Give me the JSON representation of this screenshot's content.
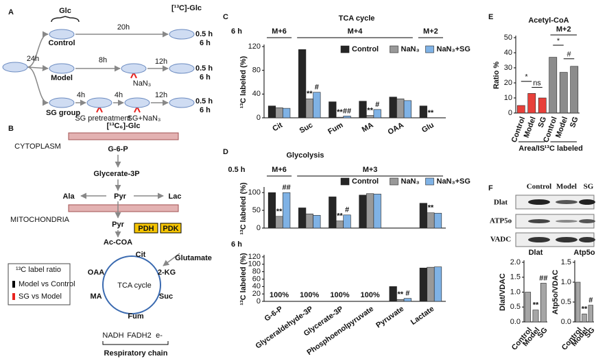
{
  "panels": [
    "A",
    "B",
    "C",
    "D",
    "E",
    "F"
  ],
  "diagram_a": {
    "glc": "Glc",
    "labeled_glc": "[¹³C]-Glc",
    "steps": [
      "24h",
      "20h",
      "8h",
      "12h",
      "4h",
      "4h",
      "12h"
    ],
    "groups": [
      "Control",
      "Model",
      "SG group"
    ],
    "treatments": [
      "NaN₃",
      "SG pretreatment",
      "SG+NaN₃"
    ],
    "times": [
      "0.5 h",
      "6 h"
    ]
  },
  "diagram_b": {
    "source": "[¹³C₆]-Glc",
    "compartments": [
      "CYTOPLASM",
      "MITOCHONDRIA"
    ],
    "nodes": [
      "G-6-P",
      "Glycerate-3P",
      "Ala",
      "Pyr",
      "Lac",
      "Pyr",
      "Ac-COA",
      "Cit",
      "Glutamate",
      "OAA",
      "2-KG",
      "MA",
      "Suc",
      "Fum"
    ],
    "enzymes": [
      "PDH",
      "PDK"
    ],
    "cycle": "TCA cycle",
    "chain": [
      "NADH",
      "FADH2",
      "e-"
    ],
    "chain_label": "Respiratory chain",
    "legend": {
      "title": "¹³C label ratio",
      "items": [
        "Model vs Control",
        "SG vs Model"
      ]
    }
  },
  "blot": {
    "lanes": [
      "Control",
      "Model",
      "SG"
    ],
    "proteins": [
      "Dlat",
      "ATP5o",
      "VADC"
    ]
  },
  "chart_data": [
    {
      "type": "bar",
      "title": "TCA cycle",
      "time": "6 h",
      "ylabel": "¹³C labeled (%)",
      "legend": "upper right",
      "groups": [
        {
          "label": "M+6",
          "size": 1
        },
        {
          "label": "M+4",
          "size": 4
        },
        {
          "label": "M+2",
          "size": 1
        }
      ],
      "categories": [
        "Cit",
        "Suc",
        "Fum",
        "MA",
        "OAA",
        "Glu"
      ],
      "series": [
        {
          "name": "Control",
          "color": "#262626",
          "values": [
            20,
            115,
            27,
            28,
            35,
            20
          ]
        },
        {
          "name": "NaN₃",
          "color": "#999999",
          "values": [
            17,
            32,
            1,
            4,
            32,
            0
          ],
          "marks": [
            null,
            "**",
            "**",
            "**",
            null,
            "**"
          ]
        },
        {
          "name": "NaN₃+SG",
          "color": "#7fb2e5",
          "values": [
            16,
            43,
            3,
            14,
            29,
            0
          ],
          "marks": [
            null,
            "#",
            "##",
            "#",
            null,
            null
          ]
        }
      ],
      "ylim": [
        0,
        120
      ],
      "yticks": [
        0,
        40,
        80,
        120
      ]
    },
    {
      "type": "bar",
      "title": "Glycolysis",
      "time": "0.5 h",
      "ylabel": "¹³C labeled (%)",
      "legend": "upper right",
      "groups": [
        {
          "label": "M+6",
          "size": 1
        },
        {
          "label": "M+3",
          "size": 5
        }
      ],
      "series": [
        {
          "name": "Control",
          "color": "#262626",
          "values": [
            100,
            57,
            88,
            93,
            0,
            70
          ]
        },
        {
          "name": "NaN₃",
          "color": "#999999",
          "values": [
            33,
            40,
            20,
            97,
            0,
            43
          ],
          "marks": [
            "**",
            null,
            "**",
            null,
            null,
            "**"
          ]
        },
        {
          "name": "NaN₃+SG",
          "color": "#7fb2e5",
          "values": [
            100,
            36,
            37,
            96,
            0,
            42
          ],
          "marks": [
            "##",
            null,
            "#",
            null,
            null,
            null
          ]
        }
      ],
      "ylim": [
        0,
        110
      ],
      "yticks": [
        0,
        50,
        100
      ]
    },
    {
      "type": "bar",
      "time": "6 h",
      "ylabel": "¹³C labeled (%)",
      "categories": [
        "G-6-P",
        "Glyceraldehyde-3P",
        "Glycerate-3P",
        "Phosphoenolpyruvate",
        "Pyruvate",
        "Lactate"
      ],
      "notes": [
        "100%",
        "100%",
        "100%",
        "100%",
        null,
        null
      ],
      "series": [
        {
          "name": "Control",
          "color": "#262626",
          "values": [
            null,
            null,
            null,
            null,
            40,
            90
          ]
        },
        {
          "name": "NaN₃",
          "color": "#999999",
          "values": [
            null,
            null,
            null,
            null,
            5,
            92
          ],
          "marks": [
            null,
            null,
            null,
            null,
            "**",
            null
          ]
        },
        {
          "name": "NaN₃+SG",
          "color": "#7fb2e5",
          "values": [
            null,
            null,
            null,
            null,
            8,
            93
          ],
          "marks": [
            null,
            null,
            null,
            null,
            "#",
            null
          ]
        }
      ],
      "ylim": [
        0,
        120
      ],
      "yticks": [
        0,
        20,
        40,
        60,
        80,
        100,
        120
      ]
    },
    {
      "type": "bar",
      "title": "Acetyl-CoA",
      "ylabel": "Ratio %",
      "categories": [
        "Control",
        "Model",
        "SG"
      ],
      "series": [
        {
          "name": "Area/IS",
          "color": "#e8403a",
          "values": [
            5,
            13,
            10
          ]
        },
        {
          "name": "¹³C labeled",
          "color": "#8c8c8c",
          "values": [
            37,
            27,
            31
          ],
          "tag": "M+2"
        }
      ],
      "comparisons": [
        "*",
        "ns",
        "*",
        "#"
      ],
      "ylim": [
        0,
        50
      ],
      "yticks": [
        0,
        10,
        20,
        30,
        40,
        50
      ]
    },
    {
      "type": "bar",
      "title": "Dlat",
      "ylabel": "Dlat/VDAC",
      "categories": [
        "Control",
        "Model",
        "SG"
      ],
      "series": [
        {
          "name": "Dlat",
          "color": "#a6a6a6",
          "values": [
            1.0,
            0.4,
            1.3
          ],
          "marks": [
            null,
            "**",
            "##"
          ]
        }
      ],
      "ylim": [
        0,
        2.0
      ],
      "yticks": [
        {
          "value": 0,
          "label": "0.0"
        },
        {
          "value": 0.5,
          "label": "0.5"
        },
        {
          "value": 1,
          "label": "1.0"
        },
        {
          "value": 1.5,
          "label": "1.5"
        },
        {
          "value": 2,
          "label": "2.0"
        }
      ]
    },
    {
      "type": "bar",
      "title": "Atp5o",
      "ylabel": "Atp5o/VDAC",
      "categories": [
        "Control",
        "Model",
        "SG"
      ],
      "series": [
        {
          "name": "Atp5o",
          "color": "#a6a6a6",
          "values": [
            1.0,
            0.2,
            0.42
          ],
          "marks": [
            null,
            "**",
            "#"
          ]
        }
      ],
      "ylim": [
        0,
        1.5
      ],
      "yticks": [
        {
          "value": 0,
          "label": "0.0"
        },
        {
          "value": 0.5,
          "label": "0.5"
        },
        {
          "value": 1,
          "label": "1.0"
        },
        {
          "value": 1.5,
          "label": "1.5"
        }
      ]
    }
  ]
}
